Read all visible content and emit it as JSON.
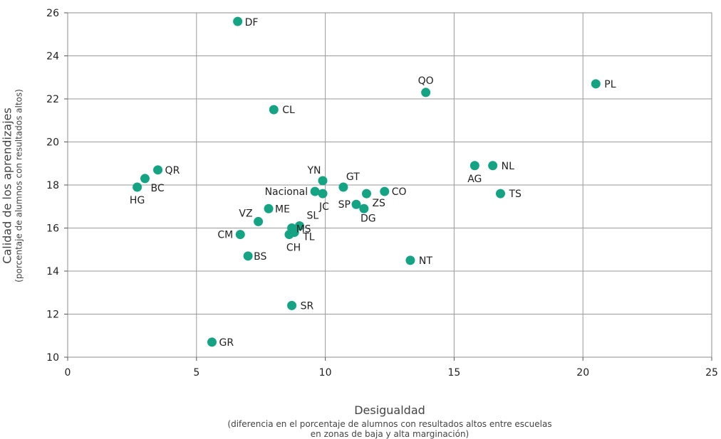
{
  "chart_data": {
    "type": "scatter",
    "xlabel": "Desigualdad",
    "xlabel_sub": [
      "(diferencia en el porcentaje de alumnos con resultados altos entre escuelas",
      "en zonas de baja y alta marginación)"
    ],
    "ylabel": "Calidad de los aprendizajes",
    "ylabel_sub": "(porcentaje de alumnos con resultados altos)",
    "xlim": [
      0,
      25
    ],
    "ylim": [
      10,
      26
    ],
    "xticks": [
      "0",
      "5",
      "10",
      "15",
      "20",
      "25"
    ],
    "yticks": [
      "10",
      "12",
      "14",
      "16",
      "18",
      "20",
      "22",
      "24",
      "26"
    ],
    "grid": true,
    "marker_color": "#14a383",
    "points": [
      {
        "label": "DF",
        "x": 6.6,
        "y": 25.6
      },
      {
        "label": "PL",
        "x": 20.5,
        "y": 22.7
      },
      {
        "label": "QO",
        "x": 13.9,
        "y": 22.3
      },
      {
        "label": "CL",
        "x": 8.0,
        "y": 21.5
      },
      {
        "label": "QR",
        "x": 3.5,
        "y": 18.7
      },
      {
        "label": "BC",
        "x": 3.0,
        "y": 18.3
      },
      {
        "label": "HG",
        "x": 2.7,
        "y": 17.9
      },
      {
        "label": "AG",
        "x": 15.8,
        "y": 18.9
      },
      {
        "label": "NL",
        "x": 16.5,
        "y": 18.9
      },
      {
        "label": "TS",
        "x": 16.8,
        "y": 17.6
      },
      {
        "label": "YN",
        "x": 9.9,
        "y": 18.2
      },
      {
        "label": "GT",
        "x": 10.7,
        "y": 17.9
      },
      {
        "label": "Nacional",
        "x": 9.6,
        "y": 17.7
      },
      {
        "label": "JC",
        "x": 9.9,
        "y": 17.6
      },
      {
        "label": "CO",
        "x": 12.3,
        "y": 17.7
      },
      {
        "label": "ZS",
        "x": 11.6,
        "y": 17.6
      },
      {
        "label": "SP",
        "x": 11.2,
        "y": 17.1
      },
      {
        "label": "DG",
        "x": 11.5,
        "y": 16.9
      },
      {
        "label": "ME",
        "x": 7.8,
        "y": 16.9
      },
      {
        "label": "VZ",
        "x": 7.4,
        "y": 16.3
      },
      {
        "label": "SL",
        "x": 9.0,
        "y": 16.1
      },
      {
        "label": "MS",
        "x": 8.7,
        "y": 16.0
      },
      {
        "label": "TL",
        "x": 8.8,
        "y": 15.8
      },
      {
        "label": "CH",
        "x": 8.6,
        "y": 15.7
      },
      {
        "label": "CM",
        "x": 6.7,
        "y": 15.7
      },
      {
        "label": "BS",
        "x": 7.0,
        "y": 14.7
      },
      {
        "label": "NT",
        "x": 13.3,
        "y": 14.5
      },
      {
        "label": "SR",
        "x": 8.7,
        "y": 12.4
      },
      {
        "label": "GR",
        "x": 5.6,
        "y": 10.7
      }
    ]
  }
}
